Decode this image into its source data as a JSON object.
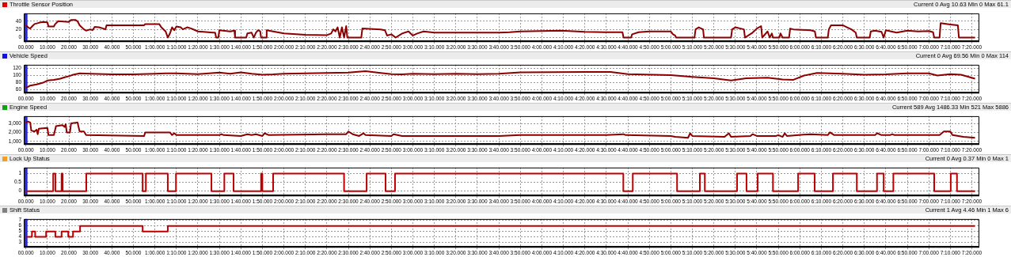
{
  "chart_data": [
    {
      "type": "line",
      "title": "Throttle Sensor Position",
      "subtitle": "Current 0 Avg 10.63 Min 0 Max 61.1",
      "grid": true,
      "marker": "none",
      "line_style": "solid",
      "xlim": [
        -1,
        443.5
      ],
      "ylim": [
        -9,
        59
      ],
      "yticks": [
        0,
        20,
        40
      ],
      "ref_lines": [
        {
          "axis": "x",
          "value": 0,
          "color": "#2a2ad0"
        }
      ],
      "xticks": [
        {
          "value": 0,
          "label": "00.000"
        },
        {
          "value": 10,
          "label": "10.000"
        },
        {
          "value": 20,
          "label": "20.000"
        },
        {
          "value": 30,
          "label": "30.000"
        },
        {
          "value": 40,
          "label": "40.000"
        },
        {
          "value": 50,
          "label": "50.000"
        },
        {
          "value": 60,
          "label": "1:00.000"
        },
        {
          "value": 70,
          "label": "1:10.000"
        },
        {
          "value": 80,
          "label": "1:20.000"
        },
        {
          "value": 90,
          "label": "1:30.000"
        },
        {
          "value": 100,
          "label": "1:40.000"
        },
        {
          "value": 110,
          "label": "1:50.000"
        },
        {
          "value": 120,
          "label": "2:00.000"
        },
        {
          "value": 130,
          "label": "2:10.000"
        },
        {
          "value": 140,
          "label": "2:20.000"
        },
        {
          "value": 150,
          "label": "2:30.000"
        },
        {
          "value": 160,
          "label": "2:40.000"
        },
        {
          "value": 170,
          "label": "2:50.000"
        },
        {
          "value": 180,
          "label": "3:00.000"
        },
        {
          "value": 190,
          "label": "3:10.000"
        },
        {
          "value": 200,
          "label": "3:20.000"
        },
        {
          "value": 210,
          "label": "3:30.000"
        },
        {
          "value": 220,
          "label": "3:40.000"
        },
        {
          "value": 230,
          "label": "3:50.000"
        },
        {
          "value": 240,
          "label": "4:00.000"
        },
        {
          "value": 250,
          "label": "4:10.000"
        },
        {
          "value": 260,
          "label": "4:20.000"
        },
        {
          "value": 270,
          "label": "4:30.000"
        },
        {
          "value": 280,
          "label": "4:40.000"
        },
        {
          "value": 290,
          "label": "4:50.000"
        },
        {
          "value": 300,
          "label": "5:00.000"
        },
        {
          "value": 310,
          "label": "5:10.000"
        },
        {
          "value": 320,
          "label": "5:20.000"
        },
        {
          "value": 330,
          "label": "5:30.000"
        },
        {
          "value": 340,
          "label": "5:40.000"
        },
        {
          "value": 350,
          "label": "5:50.000"
        },
        {
          "value": 360,
          "label": "6:00.000"
        },
        {
          "value": 370,
          "label": "6:10.000"
        },
        {
          "value": 380,
          "label": "6:20.000"
        },
        {
          "value": 390,
          "label": "6:30.000"
        },
        {
          "value": 400,
          "label": "6:40.000"
        },
        {
          "value": 410,
          "label": "6:50.000"
        },
        {
          "value": 420,
          "label": "7:00.000"
        },
        {
          "value": 430,
          "label": "7:10.000"
        },
        {
          "value": 440,
          "label": "7:20.000"
        }
      ],
      "series": [
        {
          "color": "#8b0000",
          "x": [
            0,
            1,
            2,
            3,
            4,
            6,
            8,
            10,
            10.5,
            13,
            13.5,
            15,
            20,
            21,
            23,
            24,
            25,
            27,
            28,
            30,
            31,
            32,
            34,
            36,
            37,
            37.5,
            55,
            55.5,
            62,
            63,
            65,
            66,
            67,
            68,
            69,
            70,
            72,
            73,
            75,
            77,
            80,
            87,
            88,
            88.5,
            89.5,
            90,
            95,
            97,
            97.3,
            102.5,
            103,
            105,
            106,
            107,
            108,
            109,
            109.4,
            111.8,
            112,
            115,
            120,
            130,
            140,
            142,
            143,
            144,
            145,
            146,
            147,
            148,
            149,
            149.5,
            156,
            156.5,
            165,
            167,
            168,
            170,
            172,
            175,
            178,
            180,
            182,
            185,
            190,
            220,
            225,
            230,
            249,
            260,
            271,
            277.5,
            278,
            281.5,
            282,
            285,
            290,
            300,
            301,
            302,
            302.5,
            311,
            311.5,
            313,
            315,
            315.4,
            328,
            328.5,
            330,
            334,
            334.5,
            338,
            340,
            342,
            342.5,
            345,
            346,
            347,
            347.5,
            350.5,
            351,
            352,
            355,
            355.5,
            357,
            365,
            367,
            367.5,
            373,
            373.5,
            374.5,
            380,
            382,
            384,
            386,
            386.5,
            392.5,
            393,
            395,
            398,
            399,
            400,
            405,
            408,
            410,
            415,
            420,
            422,
            422.5,
            425,
            425.5,
            430,
            433.5,
            434,
            441.5
          ],
          "values": [
            30,
            25,
            22,
            28,
            33,
            36,
            38,
            37,
            27,
            27,
            32,
            40,
            38,
            43,
            43,
            40,
            30,
            20,
            17,
            20,
            18,
            26,
            25,
            22,
            20,
            30,
            30,
            33,
            33,
            25,
            15,
            0,
            10,
            25,
            18,
            27,
            25,
            20,
            25,
            22,
            15,
            12,
            12,
            0,
            0,
            18,
            15,
            17,
            0,
            0,
            10,
            12,
            0,
            12,
            18,
            15,
            0,
            0,
            18,
            15,
            10,
            7,
            6,
            10,
            20,
            15,
            25,
            0,
            25,
            0,
            28,
            0,
            0,
            22,
            20,
            18,
            5,
            8,
            0,
            10,
            15,
            5,
            10,
            15,
            12,
            12,
            13,
            15,
            17,
            14,
            13,
            13,
            0,
            0,
            8,
            13,
            15,
            15,
            8,
            5,
            0,
            0,
            20,
            25,
            20,
            0,
            0,
            20,
            25,
            20,
            0,
            12,
            22,
            28,
            0,
            15,
            0,
            10,
            0,
            0,
            10,
            0,
            0,
            22,
            20,
            18,
            15,
            0,
            0,
            20,
            30,
            30,
            25,
            20,
            12,
            0,
            0,
            15,
            17,
            14,
            0,
            18,
            12,
            15,
            17,
            15,
            16,
            13,
            0,
            0,
            35,
            32,
            30,
            0,
            0
          ]
        }
      ]
    },
    {
      "type": "line",
      "title": "Vehicle Speed",
      "subtitle": "Current 0 Avg 69.56 Min 0 Max 114",
      "grid": true,
      "marker": "none",
      "line_style": "solid",
      "xlim": [
        -1,
        443.5
      ],
      "ylim": [
        52,
        130
      ],
      "yticks": [
        60,
        80,
        100,
        120
      ],
      "ref_lines": [
        {
          "axis": "x",
          "value": 0,
          "color": "#2a2ad0"
        }
      ],
      "xticks": [
        {
          "value": 0,
          "label": "00.000"
        },
        {
          "value": 10,
          "label": "10.000"
        },
        {
          "value": 20,
          "label": "20.000"
        },
        {
          "value": 30,
          "label": "30.000"
        },
        {
          "value": 40,
          "label": "40.000"
        },
        {
          "value": 50,
          "label": "50.000"
        },
        {
          "value": 60,
          "label": "1:00.000"
        },
        {
          "value": 70,
          "label": "1:10.000"
        },
        {
          "value": 80,
          "label": "1:20.000"
        },
        {
          "value": 90,
          "label": "1:30.000"
        },
        {
          "value": 100,
          "label": "1:40.000"
        },
        {
          "value": 110,
          "label": "1:50.000"
        },
        {
          "value": 120,
          "label": "2:00.000"
        },
        {
          "value": 130,
          "label": "2:10.000"
        },
        {
          "value": 140,
          "label": "2:20.000"
        },
        {
          "value": 150,
          "label": "2:30.000"
        },
        {
          "value": 160,
          "label": "2:40.000"
        },
        {
          "value": 170,
          "label": "2:50.000"
        },
        {
          "value": 180,
          "label": "3:00.000"
        },
        {
          "value": 190,
          "label": "3:10.000"
        },
        {
          "value": 200,
          "label": "3:20.000"
        },
        {
          "value": 210,
          "label": "3:30.000"
        },
        {
          "value": 220,
          "label": "3:40.000"
        },
        {
          "value": 230,
          "label": "3:50.000"
        },
        {
          "value": 240,
          "label": "4:00.000"
        },
        {
          "value": 250,
          "label": "4:10.000"
        },
        {
          "value": 260,
          "label": "4:20.000"
        },
        {
          "value": 270,
          "label": "4:30.000"
        },
        {
          "value": 280,
          "label": "4:40.000"
        },
        {
          "value": 290,
          "label": "4:50.000"
        },
        {
          "value": 300,
          "label": "5:00.000"
        },
        {
          "value": 310,
          "label": "5:10.000"
        },
        {
          "value": 320,
          "label": "5:20.000"
        },
        {
          "value": 330,
          "label": "5:30.000"
        },
        {
          "value": 340,
          "label": "5:40.000"
        },
        {
          "value": 350,
          "label": "5:50.000"
        },
        {
          "value": 360,
          "label": "6:00.000"
        },
        {
          "value": 370,
          "label": "6:10.000"
        },
        {
          "value": 380,
          "label": "6:20.000"
        },
        {
          "value": 390,
          "label": "6:30.000"
        },
        {
          "value": 400,
          "label": "6:40.000"
        },
        {
          "value": 410,
          "label": "6:50.000"
        },
        {
          "value": 420,
          "label": "7:00.000"
        },
        {
          "value": 430,
          "label": "7:10.000"
        },
        {
          "value": 440,
          "label": "7:20.000"
        }
      ],
      "series": [
        {
          "color": "#8b0000",
          "x": [
            0,
            2,
            5,
            8,
            10,
            13,
            16,
            18,
            20,
            22,
            25,
            30,
            40,
            50,
            60,
            65,
            70,
            80,
            90,
            95,
            100,
            105,
            110,
            115,
            120,
            130,
            140,
            150,
            158,
            165,
            170,
            175,
            180,
            190,
            200,
            210,
            220,
            230,
            260,
            272,
            280,
            300,
            310,
            320,
            328,
            335,
            345,
            352,
            357,
            362,
            368,
            380,
            390,
            400,
            410,
            420,
            424,
            430,
            435,
            441.5
          ],
          "values": [
            65,
            72,
            75,
            80,
            86,
            88,
            91,
            95,
            98,
            102,
            106,
            105,
            103,
            103,
            105,
            106,
            106,
            104,
            108,
            105,
            109,
            105,
            102,
            103,
            105,
            106,
            107,
            108,
            112,
            107,
            104,
            103,
            105,
            104,
            105,
            104,
            105,
            109,
            110,
            110,
            104,
            101,
            96,
            92,
            86,
            92,
            94,
            89,
            88,
            100,
            107,
            105,
            102,
            103,
            106,
            106,
            100,
            104,
            102,
            91
          ]
        }
      ]
    },
    {
      "type": "line",
      "title": "Engine Speed",
      "subtitle": "Current 589 Avg 1486.33 Min 521 Max 5886",
      "grid": true,
      "marker": "none",
      "line_style": "solid",
      "xlim": [
        -1,
        443.5
      ],
      "ylim": [
        700,
        3800
      ],
      "yticks": [
        {
          "value": 1000,
          "label": "1,000"
        },
        {
          "value": 2000,
          "label": "2,000"
        },
        {
          "value": 3000,
          "label": "3,000"
        }
      ],
      "ref_lines": [
        {
          "axis": "x",
          "value": 0,
          "color": "#2a2ad0"
        }
      ],
      "xticks": [
        {
          "value": 0,
          "label": "00.000"
        },
        {
          "value": 10,
          "label": "10.000"
        },
        {
          "value": 20,
          "label": "20.000"
        },
        {
          "value": 30,
          "label": "30.000"
        },
        {
          "value": 40,
          "label": "40.000"
        },
        {
          "value": 50,
          "label": "50.000"
        },
        {
          "value": 60,
          "label": "1:00.000"
        },
        {
          "value": 70,
          "label": "1:10.000"
        },
        {
          "value": 80,
          "label": "1:20.000"
        },
        {
          "value": 90,
          "label": "1:30.000"
        },
        {
          "value": 100,
          "label": "1:40.000"
        },
        {
          "value": 110,
          "label": "1:50.000"
        },
        {
          "value": 120,
          "label": "2:00.000"
        },
        {
          "value": 130,
          "label": "2:10.000"
        },
        {
          "value": 140,
          "label": "2:20.000"
        },
        {
          "value": 150,
          "label": "2:30.000"
        },
        {
          "value": 160,
          "label": "2:40.000"
        },
        {
          "value": 170,
          "label": "2:50.000"
        },
        {
          "value": 180,
          "label": "3:00.000"
        },
        {
          "value": 190,
          "label": "3:10.000"
        },
        {
          "value": 200,
          "label": "3:20.000"
        },
        {
          "value": 210,
          "label": "3:30.000"
        },
        {
          "value": 220,
          "label": "3:40.000"
        },
        {
          "value": 230,
          "label": "3:50.000"
        },
        {
          "value": 240,
          "label": "4:00.000"
        },
        {
          "value": 250,
          "label": "4:10.000"
        },
        {
          "value": 260,
          "label": "4:20.000"
        },
        {
          "value": 270,
          "label": "4:30.000"
        },
        {
          "value": 280,
          "label": "4:40.000"
        },
        {
          "value": 290,
          "label": "4:50.000"
        },
        {
          "value": 300,
          "label": "5:00.000"
        },
        {
          "value": 310,
          "label": "5:10.000"
        },
        {
          "value": 320,
          "label": "5:20.000"
        },
        {
          "value": 330,
          "label": "5:30.000"
        },
        {
          "value": 340,
          "label": "5:40.000"
        },
        {
          "value": 350,
          "label": "5:50.000"
        },
        {
          "value": 360,
          "label": "6:00.000"
        },
        {
          "value": 370,
          "label": "6:10.000"
        },
        {
          "value": 380,
          "label": "6:20.000"
        },
        {
          "value": 390,
          "label": "6:30.000"
        },
        {
          "value": 400,
          "label": "6:40.000"
        },
        {
          "value": 410,
          "label": "6:50.000"
        },
        {
          "value": 420,
          "label": "7:00.000"
        },
        {
          "value": 430,
          "label": "7:10.000"
        },
        {
          "value": 440,
          "label": "7:20.000"
        }
      ],
      "series": [
        {
          "color": "#8b0000",
          "x": [
            0,
            1,
            2,
            2.5,
            4,
            5,
            5.5,
            6,
            10,
            10.5,
            13,
            14,
            17,
            18,
            18.5,
            19,
            20.5,
            21,
            24,
            25,
            27,
            28,
            55,
            55.5,
            60,
            67,
            68,
            69,
            70,
            90,
            91,
            92,
            100,
            103,
            105,
            107,
            110,
            111,
            113,
            140,
            149,
            150,
            152,
            155,
            157,
            158,
            170,
            171,
            175,
            220,
            230,
            270,
            278,
            279,
            300,
            302,
            308,
            309,
            310,
            325,
            327,
            328,
            337,
            338,
            340,
            349,
            350,
            352,
            353,
            354,
            365,
            373,
            374,
            376,
            395,
            396,
            398,
            402,
            403,
            404,
            425,
            427,
            430,
            431,
            436,
            441.5
          ],
          "values": [
            3100,
            3200,
            3100,
            2200,
            2100,
            2300,
            1800,
            2400,
            2500,
            1700,
            1700,
            2700,
            2800,
            2600,
            2900,
            2000,
            2000,
            3000,
            3100,
            2100,
            2100,
            1700,
            1600,
            2000,
            2000,
            2000,
            1700,
            1900,
            1700,
            1700,
            1800,
            1700,
            1600,
            1800,
            1700,
            1800,
            1600,
            1900,
            1700,
            1800,
            1800,
            2100,
            1800,
            1600,
            1900,
            1700,
            1600,
            1800,
            1600,
            1600,
            1700,
            1700,
            1800,
            1700,
            1600,
            1500,
            1400,
            1900,
            1600,
            1500,
            1900,
            1500,
            1600,
            1800,
            1600,
            1600,
            1700,
            1500,
            1900,
            1600,
            1800,
            1700,
            2000,
            1700,
            1700,
            1900,
            1700,
            1700,
            1800,
            1700,
            1700,
            2100,
            2100,
            1700,
            1500,
            1400
          ]
        }
      ]
    },
    {
      "type": "step",
      "title": "Lock Up Status",
      "subtitle": "Current 0 Avg 0.37 Min 0 Max 1",
      "grid": true,
      "marker": "none",
      "line_style": "solid",
      "xlim": [
        -1,
        443.5
      ],
      "ylim": [
        -0.25,
        1.35
      ],
      "yticks": [
        0,
        0.5,
        1
      ],
      "ref_lines": [
        {
          "axis": "x",
          "value": 0,
          "color": "#2a2ad0"
        }
      ],
      "xticks": [
        {
          "value": 0,
          "label": "00.000"
        },
        {
          "value": 10,
          "label": "10.000"
        },
        {
          "value": 20,
          "label": "20.000"
        },
        {
          "value": 30,
          "label": "30.000"
        },
        {
          "value": 40,
          "label": "40.000"
        },
        {
          "value": 50,
          "label": "50.000"
        },
        {
          "value": 60,
          "label": "1:00.000"
        },
        {
          "value": 70,
          "label": "1:10.000"
        },
        {
          "value": 80,
          "label": "1:20.000"
        },
        {
          "value": 90,
          "label": "1:30.000"
        },
        {
          "value": 100,
          "label": "1:40.000"
        },
        {
          "value": 110,
          "label": "1:50.000"
        },
        {
          "value": 120,
          "label": "2:00.000"
        },
        {
          "value": 130,
          "label": "2:10.000"
        },
        {
          "value": 140,
          "label": "2:20.000"
        },
        {
          "value": 150,
          "label": "2:30.000"
        },
        {
          "value": 160,
          "label": "2:40.000"
        },
        {
          "value": 170,
          "label": "2:50.000"
        },
        {
          "value": 180,
          "label": "3:00.000"
        },
        {
          "value": 190,
          "label": "3:10.000"
        },
        {
          "value": 200,
          "label": "3:20.000"
        },
        {
          "value": 210,
          "label": "3:30.000"
        },
        {
          "value": 220,
          "label": "3:40.000"
        },
        {
          "value": 230,
          "label": "3:50.000"
        },
        {
          "value": 240,
          "label": "4:00.000"
        },
        {
          "value": 250,
          "label": "4:10.000"
        },
        {
          "value": 260,
          "label": "4:20.000"
        },
        {
          "value": 270,
          "label": "4:30.000"
        },
        {
          "value": 280,
          "label": "4:40.000"
        },
        {
          "value": 290,
          "label": "4:50.000"
        },
        {
          "value": 300,
          "label": "5:00.000"
        },
        {
          "value": 310,
          "label": "5:10.000"
        },
        {
          "value": 320,
          "label": "5:20.000"
        },
        {
          "value": 330,
          "label": "5:30.000"
        },
        {
          "value": 340,
          "label": "5:40.000"
        },
        {
          "value": 350,
          "label": "5:50.000"
        },
        {
          "value": 360,
          "label": "6:00.000"
        },
        {
          "value": 370,
          "label": "6:10.000"
        },
        {
          "value": 380,
          "label": "6:20.000"
        },
        {
          "value": 390,
          "label": "6:30.000"
        },
        {
          "value": 400,
          "label": "6:40.000"
        },
        {
          "value": 410,
          "label": "6:50.000"
        },
        {
          "value": 420,
          "label": "7:00.000"
        },
        {
          "value": 430,
          "label": "7:10.000"
        },
        {
          "value": 440,
          "label": "7:20.000"
        }
      ],
      "series": [
        {
          "color": "#c00000",
          "x": [
            0,
            12.7,
            13.7,
            16.6,
            17.1,
            28.1,
            54.3,
            55.8,
            66,
            69.8,
            86.3,
            92.3,
            96.6,
            109.4,
            110,
            115,
            148,
            158.5,
            167.3,
            171.7,
            277.9,
            282.3,
            302.9,
            313.5,
            315.8,
            330.8,
            335.2,
            340.4,
            347.5,
            359.2,
            366.9,
            375.4,
            386.5,
            395.9,
            399,
            403.5,
            422.5,
            430.2,
            433.1,
            441.5
          ],
          "values": [
            0,
            1,
            0,
            1,
            0,
            1,
            0,
            1,
            0,
            1,
            0,
            1,
            0,
            1,
            0,
            1,
            0,
            1,
            0,
            1,
            0,
            1,
            0,
            1,
            0,
            1,
            0,
            1,
            0,
            1,
            0,
            1,
            0,
            1,
            0,
            1,
            0,
            1,
            0,
            0
          ]
        }
      ]
    },
    {
      "type": "step",
      "title": "Shift Status",
      "subtitle": "Current 1 Avg 4.46 Min 1 Max 6",
      "grid": true,
      "marker": "none",
      "line_style": "solid",
      "xlim": [
        -1,
        443.5
      ],
      "ylim": [
        2.2,
        7.25
      ],
      "yticks": [
        3,
        4,
        5,
        6,
        7
      ],
      "ref_lines": [
        {
          "axis": "x",
          "value": 0,
          "color": "#2a2ad0"
        }
      ],
      "xticks": [
        {
          "value": 0,
          "label": "00.000"
        },
        {
          "value": 10,
          "label": "10.000"
        },
        {
          "value": 20,
          "label": "20.000"
        },
        {
          "value": 30,
          "label": "30.000"
        },
        {
          "value": 40,
          "label": "40.000"
        },
        {
          "value": 50,
          "label": "50.000"
        },
        {
          "value": 60,
          "label": "1:00.000"
        },
        {
          "value": 70,
          "label": "1:10.000"
        },
        {
          "value": 80,
          "label": "1:20.000"
        },
        {
          "value": 90,
          "label": "1:30.000"
        },
        {
          "value": 100,
          "label": "1:40.000"
        },
        {
          "value": 110,
          "label": "1:50.000"
        },
        {
          "value": 120,
          "label": "2:00.000"
        },
        {
          "value": 130,
          "label": "2:10.000"
        },
        {
          "value": 140,
          "label": "2:20.000"
        },
        {
          "value": 150,
          "label": "2:30.000"
        },
        {
          "value": 160,
          "label": "2:40.000"
        },
        {
          "value": 170,
          "label": "2:50.000"
        },
        {
          "value": 180,
          "label": "3:00.000"
        },
        {
          "value": 190,
          "label": "3:10.000"
        },
        {
          "value": 200,
          "label": "3:20.000"
        },
        {
          "value": 210,
          "label": "3:30.000"
        },
        {
          "value": 220,
          "label": "3:40.000"
        },
        {
          "value": 230,
          "label": "3:50.000"
        },
        {
          "value": 240,
          "label": "4:00.000"
        },
        {
          "value": 250,
          "label": "4:10.000"
        },
        {
          "value": 260,
          "label": "4:20.000"
        },
        {
          "value": 270,
          "label": "4:30.000"
        },
        {
          "value": 280,
          "label": "4:40.000"
        },
        {
          "value": 290,
          "label": "4:50.000"
        },
        {
          "value": 300,
          "label": "5:00.000"
        },
        {
          "value": 310,
          "label": "5:10.000"
        },
        {
          "value": 320,
          "label": "5:20.000"
        },
        {
          "value": 330,
          "label": "5:30.000"
        },
        {
          "value": 340,
          "label": "5:40.000"
        },
        {
          "value": 350,
          "label": "5:50.000"
        },
        {
          "value": 360,
          "label": "6:00.000"
        },
        {
          "value": 370,
          "label": "6:10.000"
        },
        {
          "value": 380,
          "label": "6:20.000"
        },
        {
          "value": 390,
          "label": "6:30.000"
        },
        {
          "value": 400,
          "label": "6:40.000"
        },
        {
          "value": 410,
          "label": "6:50.000"
        },
        {
          "value": 420,
          "label": "7:00.000"
        },
        {
          "value": 430,
          "label": "7:10.000"
        },
        {
          "value": 440,
          "label": "7:20.000"
        }
      ],
      "series": [
        {
          "color": "#c00000",
          "x": [
            0,
            2.8,
            4.3,
            9.4,
            13.7,
            16.6,
            19.7,
            21.9,
            25.2,
            54.3,
            66,
            441.5
          ],
          "values": [
            4,
            5,
            4,
            5,
            4,
            5,
            4,
            5,
            6,
            5,
            6,
            6
          ]
        }
      ]
    }
  ]
}
